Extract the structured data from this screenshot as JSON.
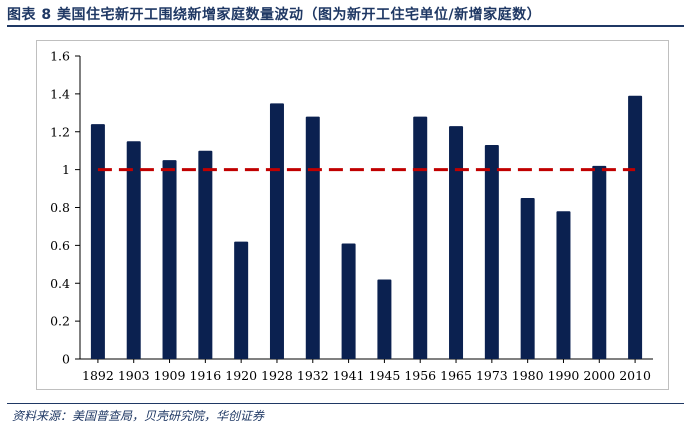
{
  "figure": {
    "title": "图表 8 美国住宅新开工围绕新增家庭数量波动（图为新开工住宅单位/新增家庭数）",
    "source": "资料来源：美国普查局，贝壳研究院，华创证券"
  },
  "colors": {
    "bar": "#0b2150",
    "reference_line": "#c00000",
    "title": "#1f3864"
  },
  "chart_data": {
    "type": "bar",
    "categories": [
      "1892",
      "1903",
      "1909",
      "1916",
      "1920",
      "1928",
      "1932",
      "1941",
      "1945",
      "1956",
      "1965",
      "1973",
      "1980",
      "1990",
      "2000",
      "2010"
    ],
    "values": [
      1.24,
      1.15,
      1.05,
      1.1,
      0.62,
      1.35,
      1.28,
      0.61,
      0.42,
      1.28,
      1.23,
      1.13,
      0.85,
      0.78,
      1.02,
      1.39
    ],
    "reference_line": 1,
    "ylim": [
      0,
      1.6
    ],
    "yticks": [
      "0",
      "0.2",
      "0.4",
      "0.6",
      "0.8",
      "1",
      "1.2",
      "1.4",
      "1.6"
    ],
    "ytick_values": [
      0,
      0.2,
      0.4,
      0.6,
      0.8,
      1,
      1.2,
      1.4,
      1.6
    ],
    "grid": false,
    "legend": "none"
  }
}
